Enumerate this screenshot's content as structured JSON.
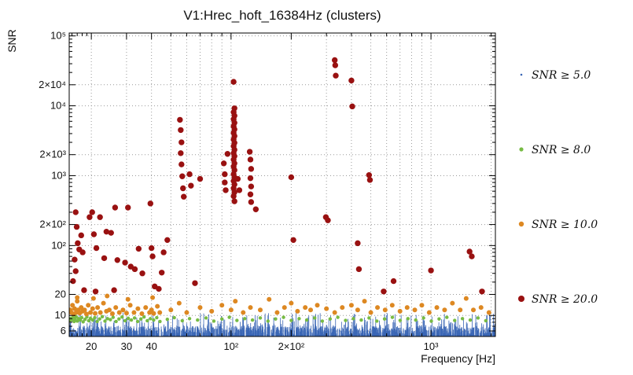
{
  "chart_data": {
    "type": "scatter",
    "title": "V1:Hrec_hoft_16384Hz (clusters)",
    "xlabel": "Frequency [Hz]",
    "ylabel": "SNR",
    "xscale": "log",
    "yscale": "log",
    "xlim": [
      15.5,
      2100
    ],
    "ylim": [
      5.0,
      110000
    ],
    "grid": {
      "x": [
        20,
        30,
        40,
        50,
        60,
        70,
        80,
        90,
        100,
        200,
        300,
        400,
        500,
        600,
        700,
        800,
        900,
        1000,
        2000
      ],
      "y": [
        6,
        10,
        20,
        100,
        200,
        1000,
        2000,
        10000,
        20000,
        100000
      ]
    },
    "x_ticks": {
      "labeled": [
        {
          "v": 20,
          "l": "20"
        },
        {
          "v": 30,
          "l": "30"
        },
        {
          "v": 40,
          "l": "40"
        },
        {
          "v": 100,
          "l": "10²"
        },
        {
          "v": 200,
          "l": "2×10²"
        },
        {
          "v": 1000,
          "l": "10³"
        }
      ],
      "minor": [
        16,
        17,
        18,
        19,
        50,
        60,
        70,
        80,
        90,
        300,
        400,
        500,
        600,
        700,
        800,
        900,
        2000
      ]
    },
    "y_ticks": {
      "labeled": [
        {
          "v": 6,
          "l": "6"
        },
        {
          "v": 10,
          "l": "10"
        },
        {
          "v": 20,
          "l": "20"
        },
        {
          "v": 100,
          "l": "10²"
        },
        {
          "v": 200,
          "l": "2×10²"
        },
        {
          "v": 1000,
          "l": "10³"
        },
        {
          "v": 2000,
          "l": "2×10³"
        },
        {
          "v": 10000,
          "l": "10⁴"
        },
        {
          "v": 20000,
          "l": "2×10⁴"
        },
        {
          "v": 100000,
          "l": "10⁵"
        }
      ],
      "minor": [
        7,
        8,
        9,
        30,
        40,
        50,
        60,
        70,
        80,
        90,
        300,
        400,
        500,
        600,
        700,
        800,
        900,
        3000,
        4000,
        5000,
        6000,
        7000,
        8000,
        9000,
        30000,
        40000,
        50000,
        60000,
        70000,
        80000,
        90000
      ]
    },
    "legend_position": "right-outside",
    "series": [
      {
        "name": "SNR ≥ 5.0",
        "color": "#3a66b5",
        "marker": "tiny-dot",
        "generated_noise_band": {
          "count": 2200,
          "seed": 7,
          "f_min": 15.5,
          "f_max": 2100,
          "snr_floor": 5.0,
          "band_top": 7.0,
          "spike_fraction": 0.12,
          "spike_top": 11.0
        }
      },
      {
        "name": "SNR ≥ 8.0",
        "color": "#77bb44",
        "marker": "dot",
        "points": [
          [
            15.6,
            8.4
          ],
          [
            15.8,
            9.1
          ],
          [
            16.0,
            8.7
          ],
          [
            16.2,
            9.4
          ],
          [
            16.4,
            8.2
          ],
          [
            16.6,
            8.9
          ],
          [
            16.8,
            9.6
          ],
          [
            17.0,
            8.3
          ],
          [
            17.3,
            9.0
          ],
          [
            17.6,
            8.6
          ],
          [
            17.9,
            9.3
          ],
          [
            18.2,
            8.1
          ],
          [
            18.6,
            8.8
          ],
          [
            19.0,
            9.5
          ],
          [
            19.4,
            8.4
          ],
          [
            19.8,
            9.1
          ],
          [
            20.3,
            8.6
          ],
          [
            20.8,
            9.3
          ],
          [
            21.4,
            8.2
          ],
          [
            22.0,
            8.9
          ],
          [
            22.7,
            9.6
          ],
          [
            23.4,
            8.3
          ],
          [
            24.1,
            9.0
          ],
          [
            24.9,
            8.7
          ],
          [
            25.7,
            9.4
          ],
          [
            26.6,
            8.2
          ],
          [
            27.5,
            8.9
          ],
          [
            28.5,
            9.5
          ],
          [
            29.5,
            8.4
          ],
          [
            30.6,
            9.1
          ],
          [
            31.7,
            8.6
          ],
          [
            32.9,
            9.2
          ],
          [
            34.1,
            8.2
          ],
          [
            35.4,
            8.9
          ],
          [
            36.7,
            9.5
          ],
          [
            38.1,
            8.4
          ],
          [
            39.5,
            9.0
          ],
          [
            41.0,
            8.6
          ],
          [
            42.5,
            9.3
          ],
          [
            44.1,
            8.2
          ],
          [
            48,
            8.8
          ],
          [
            52,
            9.3
          ],
          [
            57,
            8.4
          ],
          [
            62,
            9.0
          ],
          [
            68,
            8.6
          ],
          [
            75,
            9.2
          ],
          [
            82,
            8.3
          ],
          [
            90,
            8.9
          ],
          [
            98,
            9.4
          ],
          [
            107,
            8.5
          ],
          [
            117,
            9.0
          ],
          [
            128,
            8.6
          ],
          [
            140,
            9.2
          ],
          [
            153,
            8.3
          ],
          [
            167,
            8.9
          ],
          [
            183,
            9.4
          ],
          [
            200,
            8.5
          ],
          [
            219,
            9.0
          ],
          [
            239,
            8.6
          ],
          [
            262,
            9.2
          ],
          [
            286,
            8.3
          ],
          [
            313,
            8.9
          ],
          [
            342,
            9.4
          ],
          [
            374,
            8.5
          ],
          [
            409,
            9.0
          ],
          [
            448,
            8.6
          ],
          [
            490,
            9.2
          ],
          [
            536,
            8.3
          ],
          [
            586,
            8.9
          ],
          [
            641,
            9.4
          ],
          [
            701,
            8.5
          ],
          [
            767,
            9.0
          ],
          [
            839,
            8.6
          ],
          [
            918,
            9.2
          ],
          [
            1004,
            8.3
          ],
          [
            1098,
            8.9
          ],
          [
            1201,
            9.4
          ],
          [
            1314,
            8.5
          ],
          [
            1437,
            9.0
          ],
          [
            1572,
            8.6
          ],
          [
            1719,
            9.2
          ],
          [
            1880,
            8.4
          ]
        ]
      },
      {
        "name": "SNR ≥ 10.0",
        "color": "#dd8822",
        "marker": "dot",
        "points": [
          [
            15.7,
            12
          ],
          [
            15.9,
            11
          ],
          [
            16.1,
            14
          ],
          [
            16.3,
            10.5
          ],
          [
            16.5,
            12.5
          ],
          [
            16.8,
            11
          ],
          [
            17.0,
            16
          ],
          [
            17.0,
            18
          ],
          [
            17.2,
            12
          ],
          [
            17.5,
            10.8
          ],
          [
            17.8,
            13
          ],
          [
            18.1,
            11.5
          ],
          [
            18.5,
            12
          ],
          [
            18.9,
            10.5
          ],
          [
            19.3,
            14
          ],
          [
            19.8,
            11
          ],
          [
            20.3,
            12.5
          ],
          [
            20.5,
            17.5
          ],
          [
            20.9,
            10.7
          ],
          [
            21.5,
            13
          ],
          [
            22.2,
            11
          ],
          [
            23.0,
            15
          ],
          [
            23.8,
            11.5
          ],
          [
            24.0,
            19
          ],
          [
            24.6,
            12
          ],
          [
            25.5,
            10.6
          ],
          [
            26.5,
            13
          ],
          [
            27.6,
            11
          ],
          [
            28.8,
            12
          ],
          [
            30.0,
            10.8
          ],
          [
            30.5,
            17
          ],
          [
            31.3,
            14
          ],
          [
            32.7,
            11
          ],
          [
            34.2,
            12.5
          ],
          [
            35.8,
            10.6
          ],
          [
            37.4,
            13
          ],
          [
            39.1,
            11
          ],
          [
            40.0,
            12
          ],
          [
            40.5,
            18
          ],
          [
            41.0,
            10.7
          ],
          [
            42.8,
            13.5
          ],
          [
            44.0,
            11
          ],
          [
            50,
            12
          ],
          [
            55,
            15
          ],
          [
            60,
            11
          ],
          [
            70,
            13
          ],
          [
            80,
            11.5
          ],
          [
            90,
            14
          ],
          [
            100,
            12
          ],
          [
            105,
            16
          ],
          [
            115,
            11
          ],
          [
            125,
            13
          ],
          [
            140,
            12
          ],
          [
            155,
            17
          ],
          [
            170,
            11
          ],
          [
            185,
            13
          ],
          [
            200,
            15
          ],
          [
            215,
            11.5
          ],
          [
            235,
            13
          ],
          [
            250,
            12
          ],
          [
            270,
            14
          ],
          [
            300,
            12.5
          ],
          [
            330,
            11
          ],
          [
            360,
            13
          ],
          [
            400,
            14
          ],
          [
            430,
            12
          ],
          [
            465,
            16
          ],
          [
            500,
            11
          ],
          [
            540,
            13
          ],
          [
            590,
            12
          ],
          [
            640,
            14
          ],
          [
            700,
            11.5
          ],
          [
            760,
            13
          ],
          [
            830,
            12
          ],
          [
            900,
            14
          ],
          [
            980,
            11
          ],
          [
            1070,
            13
          ],
          [
            1170,
            12
          ],
          [
            1280,
            15
          ],
          [
            1400,
            12
          ],
          [
            1500,
            17.5
          ],
          [
            1630,
            12
          ],
          [
            1780,
            13
          ],
          [
            1950,
            11
          ]
        ]
      },
      {
        "name": "SNR ≥ 20.0",
        "color": "#991111",
        "marker": "dot",
        "points": [
          [
            16.2,
            31
          ],
          [
            16.5,
            63
          ],
          [
            16.7,
            43
          ],
          [
            16.7,
            300
          ],
          [
            16.9,
            185
          ],
          [
            17.1,
            108
          ],
          [
            17.4,
            88
          ],
          [
            17.8,
            140
          ],
          [
            18.1,
            80
          ],
          [
            18.4,
            23
          ],
          [
            19.6,
            255
          ],
          [
            20.2,
            300
          ],
          [
            20.6,
            145
          ],
          [
            21.0,
            22
          ],
          [
            21.2,
            92
          ],
          [
            22.1,
            255
          ],
          [
            23.2,
            66
          ],
          [
            23.8,
            158
          ],
          [
            25.1,
            152
          ],
          [
            26.0,
            23
          ],
          [
            26.3,
            350
          ],
          [
            27.0,
            62
          ],
          [
            29.5,
            57
          ],
          [
            30.5,
            350
          ],
          [
            31.5,
            50
          ],
          [
            33.0,
            46
          ],
          [
            34.5,
            90
          ],
          [
            36.0,
            40
          ],
          [
            39.5,
            400
          ],
          [
            40.0,
            92
          ],
          [
            40.5,
            70
          ],
          [
            41.5,
            26
          ],
          [
            43.5,
            24
          ],
          [
            45.0,
            41
          ],
          [
            46.0,
            80
          ],
          [
            48.0,
            120
          ],
          [
            55.5,
            6300
          ],
          [
            56.0,
            4500
          ],
          [
            56.5,
            3000
          ],
          [
            56.0,
            2100
          ],
          [
            56.5,
            1450
          ],
          [
            57.0,
            980
          ],
          [
            57.5,
            660
          ],
          [
            58.0,
            500
          ],
          [
            62.0,
            1050
          ],
          [
            63.0,
            720
          ],
          [
            66.0,
            29
          ],
          [
            70.0,
            900
          ],
          [
            92,
            1500
          ],
          [
            93,
            1050
          ],
          [
            93,
            800
          ],
          [
            94,
            620
          ],
          [
            96,
            2050
          ],
          [
            103,
            22000
          ],
          [
            104,
            9200
          ],
          [
            103,
            8100
          ],
          [
            104,
            7200
          ],
          [
            103,
            6400
          ],
          [
            104,
            5700
          ],
          [
            103,
            5100
          ],
          [
            104,
            4600
          ],
          [
            103,
            4100
          ],
          [
            104,
            3700
          ],
          [
            103,
            3300
          ],
          [
            104,
            2950
          ],
          [
            103,
            2650
          ],
          [
            104,
            2350
          ],
          [
            103,
            2100
          ],
          [
            104,
            1900
          ],
          [
            103,
            1700
          ],
          [
            104,
            1500
          ],
          [
            103,
            1350
          ],
          [
            104,
            1200
          ],
          [
            103,
            1050
          ],
          [
            104,
            950
          ],
          [
            103,
            840
          ],
          [
            104,
            750
          ],
          [
            103,
            660
          ],
          [
            104,
            580
          ],
          [
            103,
            510
          ],
          [
            104,
            430
          ],
          [
            108,
            900
          ],
          [
            110,
            620
          ],
          [
            124,
            2200
          ],
          [
            125,
            1700
          ],
          [
            126,
            1250
          ],
          [
            125,
            920
          ],
          [
            126,
            700
          ],
          [
            125,
            540
          ],
          [
            126,
            420
          ],
          [
            133,
            330
          ],
          [
            200,
            950
          ],
          [
            205,
            120
          ],
          [
            298,
            255
          ],
          [
            305,
            230
          ],
          [
            330,
            45000
          ],
          [
            332,
            38000
          ],
          [
            334,
            27000
          ],
          [
            400,
            23000
          ],
          [
            404,
            9800
          ],
          [
            430,
            108
          ],
          [
            436,
            46
          ],
          [
            490,
            1020
          ],
          [
            495,
            870
          ],
          [
            580,
            22
          ],
          [
            650,
            31
          ],
          [
            1000,
            44
          ],
          [
            1560,
            82
          ],
          [
            1600,
            70
          ],
          [
            1800,
            22
          ]
        ]
      }
    ]
  }
}
